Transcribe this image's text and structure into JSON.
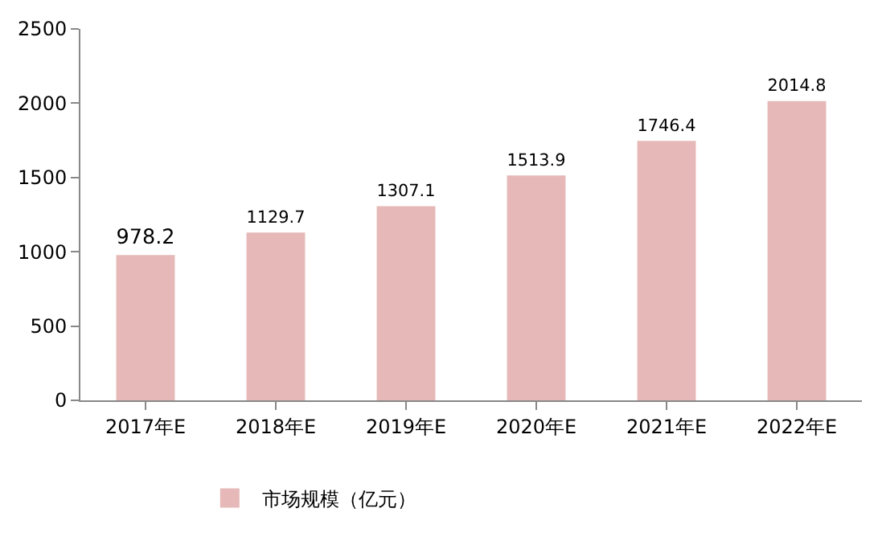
{
  "chart_data": {
    "type": "bar",
    "categories": [
      "2017年E",
      "2018年E",
      "2019年E",
      "2020年E",
      "2021年E",
      "2022年E"
    ],
    "series": [
      {
        "name": "市场规模（亿元）",
        "color": "#e6b9b8",
        "values": [
          978.2,
          1129.7,
          1307.1,
          1513.9,
          1746.4,
          2014.8
        ]
      }
    ],
    "ylim": [
      0,
      2500
    ],
    "yticks": [
      0,
      500,
      1000,
      1500,
      2000,
      2500
    ],
    "grid": false,
    "legend": "bottom",
    "data_labels": true
  }
}
